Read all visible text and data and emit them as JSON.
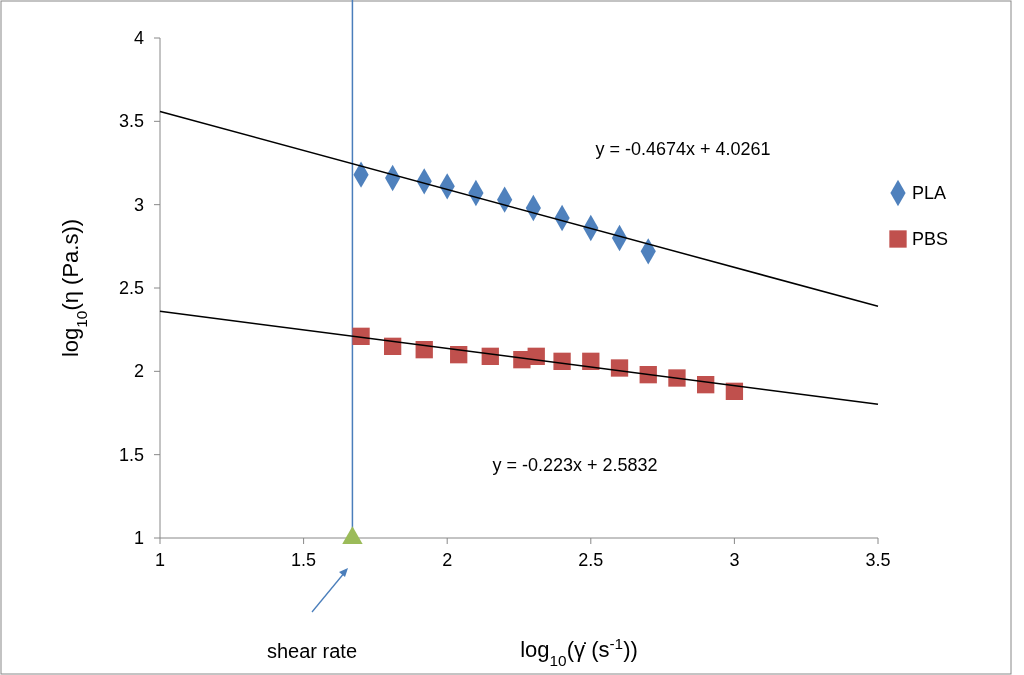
{
  "chart_data": {
    "type": "scatter",
    "xlabel": "log$_{10}$(γ̇ (s$^{-1}$))",
    "ylabel": "log$_{10}$(η (Pa.s))",
    "xlim": [
      1,
      3.5
    ],
    "ylim": [
      1,
      4
    ],
    "xticks": [
      1,
      1.5,
      2,
      2.5,
      3,
      3.5
    ],
    "yticks": [
      1,
      1.5,
      2,
      2.5,
      3,
      3.5,
      4
    ],
    "grid": false,
    "legend": "right",
    "series": [
      {
        "name": "PLA",
        "marker": "diamond",
        "color": "#4f81bd",
        "x": [
          1.7,
          1.81,
          1.92,
          2.0,
          2.1,
          2.2,
          2.3,
          2.4,
          2.5,
          2.6,
          2.7
        ],
        "values": [
          3.18,
          3.16,
          3.14,
          3.11,
          3.07,
          3.03,
          2.98,
          2.92,
          2.86,
          2.8,
          2.72
        ]
      },
      {
        "name": "PBS",
        "marker": "square",
        "color": "#c0504d",
        "x": [
          1.7,
          1.81,
          1.92,
          2.04,
          2.15,
          2.26,
          2.31,
          2.4,
          2.5,
          2.6,
          2.7,
          2.8,
          2.9,
          3.0
        ],
        "values": [
          2.21,
          2.15,
          2.13,
          2.1,
          2.09,
          2.07,
          2.09,
          2.06,
          2.06,
          2.02,
          1.98,
          1.96,
          1.92,
          1.88
        ]
      },
      {
        "type": "line",
        "marker": "none",
        "color": "#000000",
        "x": [
          1,
          3.5
        ],
        "values": [
          3.559,
          2.39
        ]
      },
      {
        "type": "line",
        "marker": "none",
        "color": "#000000",
        "x": [
          1,
          3.5
        ],
        "values": [
          2.36,
          1.803
        ]
      },
      {
        "marker": "triangle",
        "color": "#9bbb59",
        "x": [
          1.67
        ],
        "values": [
          1
        ]
      }
    ],
    "ref_lines": [
      {
        "axis": "x",
        "value": 1.67,
        "color": "#4a7ebb"
      }
    ],
    "annotations": [
      "y = -0.4674x + 4.0261",
      "y = -0.223x + 2.5832",
      "shear rate"
    ]
  }
}
